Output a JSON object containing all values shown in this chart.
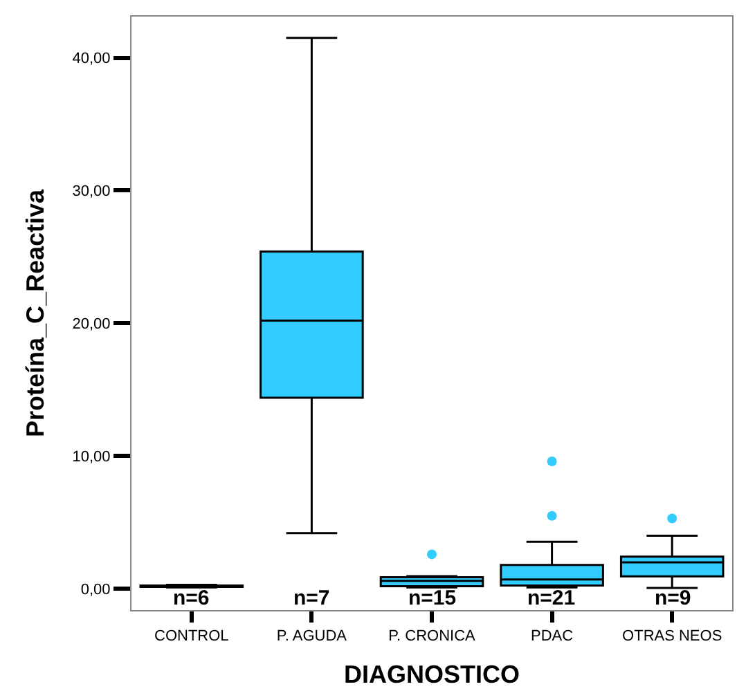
{
  "chart_data": {
    "type": "box",
    "xlabel": "DIAGNOSTICO",
    "ylabel": "Proteína_C_Reactiva",
    "categories": [
      "CONTROL",
      "P. AGUDA",
      "P. CRONICA",
      "PDAC",
      "OTRAS NEOS"
    ],
    "boxes": [
      {
        "low": 0.1,
        "q1": 0.15,
        "median": 0.2,
        "q3": 0.25,
        "high": 0.3
      },
      {
        "low": 4.2,
        "q1": 14.4,
        "median": 20.2,
        "q3": 25.4,
        "high": 41.5
      },
      {
        "low": 0.1,
        "q1": 0.2,
        "median": 0.6,
        "q3": 0.87,
        "high": 0.95,
        "outliers": [
          2.6
        ]
      },
      {
        "low": 0.1,
        "q1": 0.25,
        "median": 0.7,
        "q3": 1.8,
        "high": 3.55,
        "outliers": [
          9.6,
          5.5
        ]
      },
      {
        "low": 0.07,
        "q1": 0.94,
        "median": 2.0,
        "q3": 2.43,
        "high": 4.0,
        "outliers": [
          5.3
        ]
      }
    ],
    "color": "#33ccff",
    "ylim": [
      -1.6,
      43.1
    ],
    "yticks": [
      {
        "value": 0,
        "label": "0,00"
      },
      {
        "value": 10,
        "label": "10,00"
      },
      {
        "value": 20,
        "label": "20,00"
      },
      {
        "value": 30,
        "label": "30,00"
      },
      {
        "value": 40,
        "label": "40,00"
      }
    ],
    "annotations": [
      "n=6",
      "n=7",
      "n=15",
      "n=21",
      "n=9"
    ],
    "marker": "circle"
  }
}
